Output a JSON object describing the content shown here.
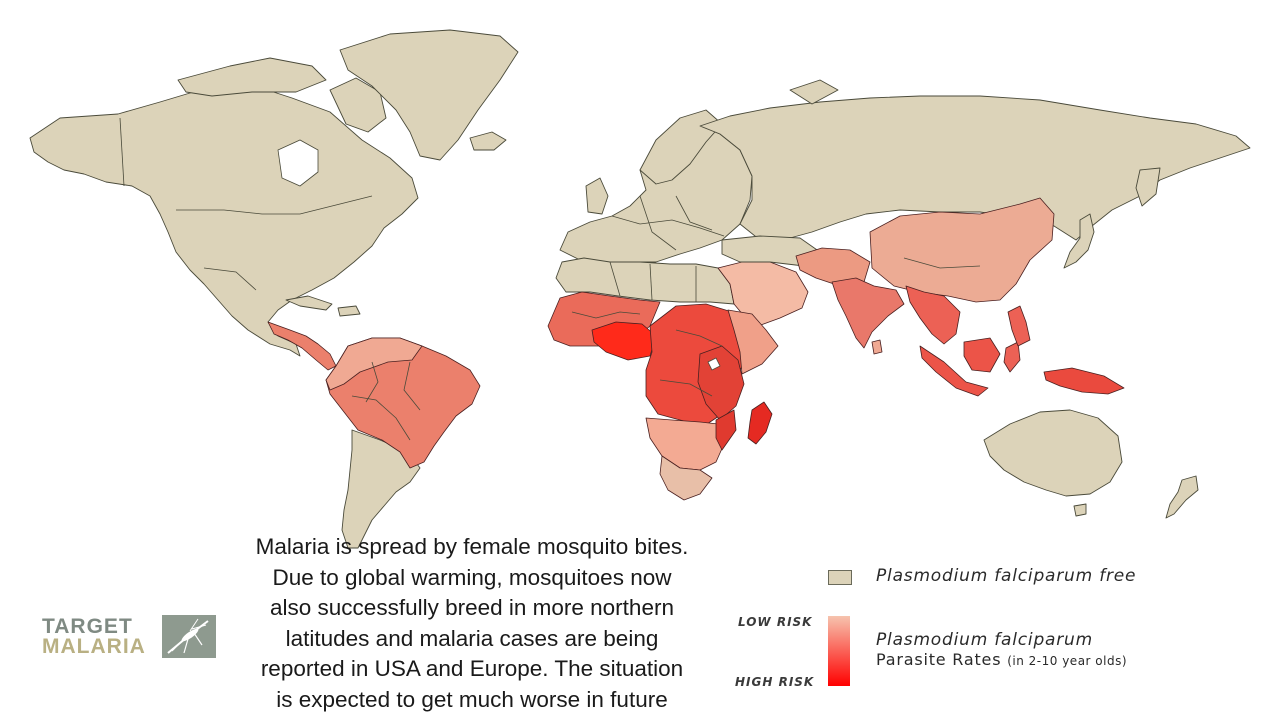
{
  "caption": {
    "lines": [
      "Malaria is spread by female mosquito bites.",
      "Due to global warming, mosquitoes now",
      "also successfully breed in more northern",
      "latitudes and malaria cases are being",
      "reported in USA and Europe.  The situation",
      "is expected to get much worse in future"
    ]
  },
  "logo": {
    "line1": "TARGET",
    "line2": "MALARIA"
  },
  "legend": {
    "free_label": "Plasmodium falciparum free",
    "low_risk": "LOW RISK",
    "high_risk": "HIGH RISK",
    "species_label": "Plasmodium falciparum",
    "rates_label": "Parasite Rates",
    "rates_sub": "(in 2-10 year olds)"
  },
  "colors": {
    "free": "#dcd3b9",
    "low_risk": "#f6c3ae",
    "high_risk": "#ff0000"
  }
}
